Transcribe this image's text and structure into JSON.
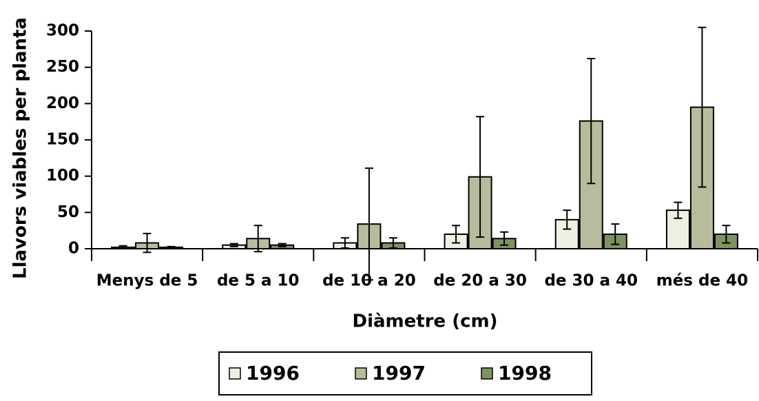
{
  "chart_data": {
    "type": "bar",
    "y_label": "Llavors viables per planta",
    "x_label": "Diàmetre (cm)",
    "categories": [
      "Menys de 5",
      "de 5 a 10",
      "de 10 a 20",
      "de 20 a 30",
      "de 30 a 40",
      "més de 40"
    ],
    "series": [
      {
        "name": "1996",
        "color": "#efefe2",
        "values": [
          2,
          5,
          8,
          20,
          40,
          53
        ],
        "errors": [
          2,
          2,
          7,
          12,
          13,
          11
        ]
      },
      {
        "name": "1997",
        "color": "#b9bc9c",
        "values": [
          8,
          14,
          34,
          99,
          176,
          195
        ],
        "errors": [
          13,
          18,
          77,
          83,
          86,
          110
        ]
      },
      {
        "name": "1998",
        "color": "#7e9460",
        "values": [
          2,
          5,
          8,
          14,
          20,
          20
        ],
        "errors": [
          1,
          2,
          7,
          9,
          14,
          12
        ]
      }
    ],
    "ylim": [
      0,
      300
    ],
    "yticks": [
      0,
      50,
      100,
      150,
      200,
      250,
      300
    ]
  }
}
